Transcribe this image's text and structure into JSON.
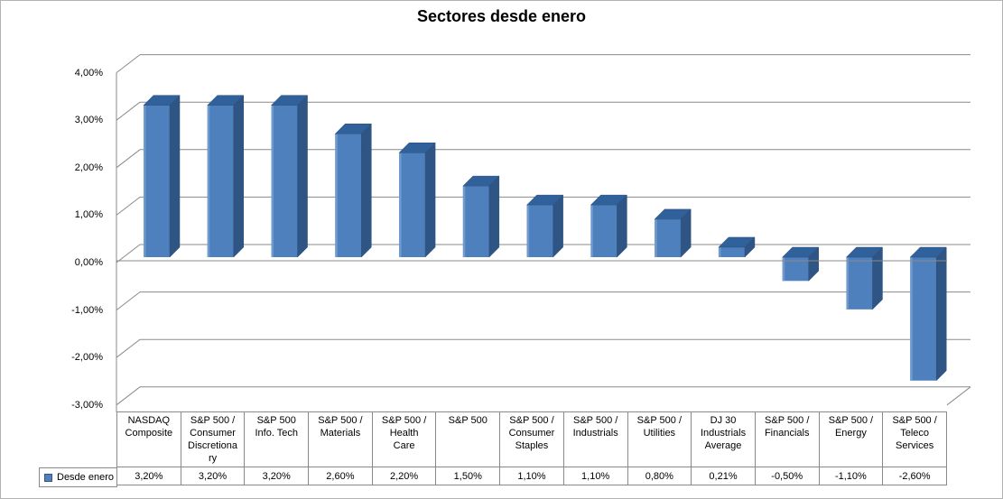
{
  "chart_data": {
    "type": "bar",
    "style": "3d-clustered-column",
    "title": "Sectores desde enero",
    "categories": [
      "NASDAQ Composite",
      "S&P 500 / Consumer Discretionary",
      "S&P 500 Info. Tech",
      "S&P 500 / Materials",
      "S&P 500 / Health Care",
      "S&P 500",
      "S&P 500 / Consumer Staples",
      "S&P 500 / Industrials",
      "S&P 500 / Utilities",
      "DJ 30 Industrials Average",
      "S&P 500 / Financials",
      "S&P 500 / Energy",
      "S&P 500 / Teleco Services"
    ],
    "category_display_lines": [
      [
        "NASDAQ",
        "Composite"
      ],
      [
        "S&P 500 /",
        "Consumer",
        "Discretiona",
        "ry"
      ],
      [
        "S&P 500",
        "Info. Tech"
      ],
      [
        "S&P 500 /",
        "Materials"
      ],
      [
        "S&P 500 /",
        "Health",
        "Care"
      ],
      [
        "S&P 500"
      ],
      [
        "S&P 500 /",
        "Consumer",
        "Staples"
      ],
      [
        "S&P 500 /",
        "Industrials"
      ],
      [
        "S&P 500 /",
        "Utilities"
      ],
      [
        "DJ 30",
        "Industrials",
        "Average"
      ],
      [
        "S&P 500 /",
        "Financials"
      ],
      [
        "S&P 500 /",
        "Energy"
      ],
      [
        "S&P 500 /",
        "Teleco",
        "Services"
      ]
    ],
    "series": [
      {
        "name": "Desde enero",
        "values": [
          3.2,
          3.2,
          3.2,
          2.6,
          2.2,
          1.5,
          1.1,
          1.1,
          0.8,
          0.21,
          -0.5,
          -1.1,
          -2.6
        ],
        "value_labels": [
          "3,20%",
          "3,20%",
          "3,20%",
          "2,60%",
          "2,20%",
          "1,50%",
          "1,10%",
          "1,10%",
          "0,80%",
          "0,21%",
          "-0,50%",
          "-1,10%",
          "-2,60%"
        ]
      }
    ],
    "xlabel": "",
    "ylabel": "",
    "y_axis": {
      "min": -3,
      "max": 4,
      "step": 1,
      "tick_labels": [
        "4,00%",
        "3,00%",
        "2,00%",
        "1,00%",
        "0,00%",
        "-1,00%",
        "-2,00%",
        "-3,00%"
      ]
    },
    "grid": true,
    "legend_position": "bottom-left",
    "data_table_shown": true,
    "colors": {
      "bar_front": "#4d80bd",
      "bar_top": "#31619b",
      "bar_side": "#2e5584",
      "bar_highlight": "#6f9ace",
      "bar_edge": "#2a4e79",
      "gridline": "#8a8a8a",
      "axis": "#8a8a8a",
      "table_border": "#8a8a8a",
      "text": "#000000",
      "background": "#ffffff",
      "legend_marker": "#4f81bd"
    }
  }
}
